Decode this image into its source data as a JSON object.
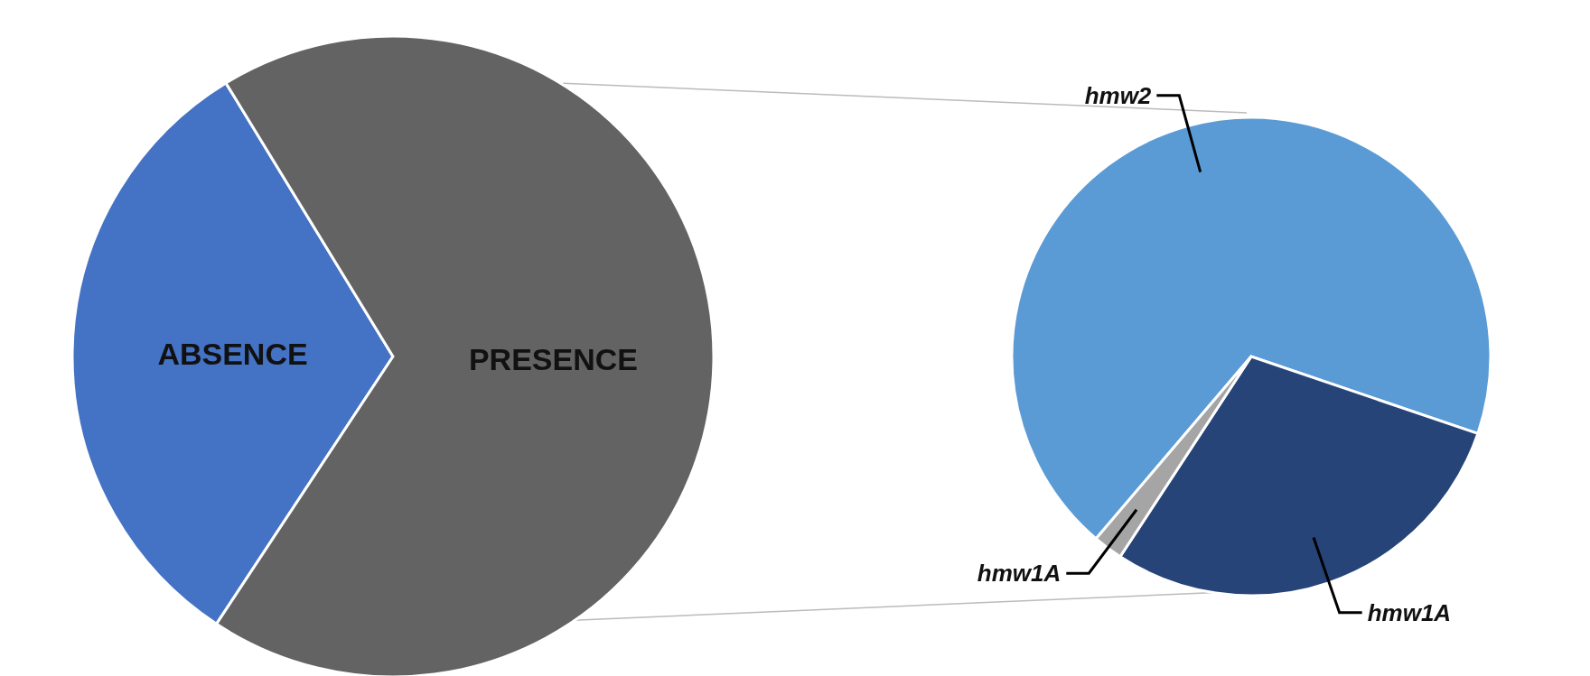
{
  "chart_data": [
    {
      "type": "pie",
      "categories": [
        "ABSENCE",
        "PRESENCE"
      ],
      "values": [
        32,
        68
      ],
      "colors": [
        "#4472c4",
        "#636363"
      ]
    },
    {
      "type": "pie",
      "categories": [
        "hmw2",
        "hmw1A",
        "hmw1A"
      ],
      "values": [
        69,
        29,
        2
      ],
      "colors": [
        "#5b9bd5",
        "#264478",
        "#a5a5a5"
      ]
    }
  ]
}
